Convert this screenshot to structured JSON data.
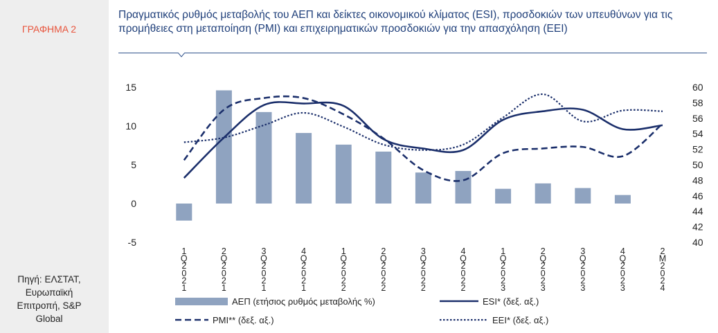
{
  "figure_label": "ΓΡΑΦΗΜΑ 2",
  "source": [
    "Πηγή: ΕΛΣΤΑΤ,",
    "Ευρωπαϊκή",
    "Επιτροπή, S&P",
    "Global"
  ],
  "title": "Πραγματικός ρυθμός μεταβολής του ΑΕΠ και δείκτες οικονομικού κλίματος (ESI), προσδοκιών των υπευθύνων για τις προμήθειες στη μεταποίηση (PMI) και επιχειρηματικών προσδοκιών για την απασχόληση (EEI)",
  "colors": {
    "bar": "#8fa3c0",
    "line": "#1b2f6b",
    "label": "#e8543c",
    "title": "#1f3f7a"
  },
  "chart_data": {
    "type": "bar+line",
    "categories": [
      "1Q2021",
      "2Q2021",
      "3Q2021",
      "4Q2021",
      "1Q2022",
      "2Q2022",
      "3Q2022",
      "4Q2022",
      "1Q2023",
      "2Q2023",
      "3Q2023",
      "4Q2023",
      "2M2024"
    ],
    "y_left": {
      "ticks": [
        -5,
        0,
        5,
        10,
        15
      ],
      "range": [
        -5,
        15
      ]
    },
    "y_right": {
      "ticks": [
        40,
        42,
        44,
        46,
        48,
        50,
        52,
        54,
        56,
        58,
        60
      ],
      "range": [
        40,
        60
      ]
    },
    "series": [
      {
        "name": "ΑΕΠ (ετήσιος ρυθμός μεταβολής %)",
        "type": "bar",
        "axis": "left",
        "values": [
          -2.2,
          14.6,
          11.8,
          9.1,
          7.6,
          6.7,
          4.0,
          4.2,
          1.9,
          2.6,
          2.0,
          1.1,
          null
        ]
      },
      {
        "name": "ESI* (δεξ. αξ.)",
        "type": "line",
        "style": "solid",
        "axis": "right",
        "values": [
          48.3,
          53.5,
          57.7,
          57.9,
          57.6,
          53.3,
          52.1,
          51.9,
          55.8,
          56.9,
          57.1,
          54.6,
          55.1
        ]
      },
      {
        "name": "PMI** (δεξ. αξ.)",
        "type": "line",
        "style": "dashed",
        "axis": "right",
        "values": [
          50.6,
          57.1,
          58.6,
          58.6,
          56.5,
          53.4,
          49.3,
          48.0,
          51.5,
          52.1,
          52.3,
          51.1,
          55.3
        ]
      },
      {
        "name": "EEI* (δεξ. αξ.)",
        "type": "line",
        "style": "dotted",
        "axis": "right",
        "values": [
          52.9,
          53.5,
          55.1,
          56.7,
          54.9,
          52.6,
          51.9,
          52.6,
          56.1,
          59.1,
          55.6,
          57.0,
          56.9
        ]
      }
    ]
  }
}
